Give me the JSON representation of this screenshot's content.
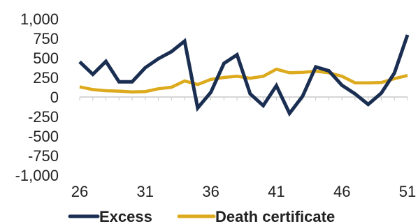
{
  "chart_data": {
    "type": "line",
    "title": "",
    "xlabel": "",
    "ylabel": "",
    "x": [
      26,
      27,
      28,
      29,
      30,
      31,
      32,
      33,
      34,
      35,
      36,
      37,
      38,
      39,
      40,
      41,
      42,
      43,
      44,
      45,
      46,
      47,
      48,
      49,
      50,
      51
    ],
    "x_ticks": [
      26,
      31,
      36,
      41,
      46,
      51
    ],
    "x_tick_labels": [
      "26",
      "31",
      "36",
      "41",
      "46",
      "51"
    ],
    "ylim": [
      -1000,
      1000
    ],
    "y_ticks": [
      1000,
      750,
      500,
      250,
      0,
      -250,
      -500,
      -750,
      -1000
    ],
    "y_tick_labels": [
      "1,000",
      "750",
      "500",
      "250",
      "0",
      "-250",
      "-500",
      "-750",
      "-1,000"
    ],
    "grid": false,
    "legend": "bottom",
    "series": [
      {
        "name": "Excess",
        "color": "#1a2e52",
        "values": [
          450,
          290,
          455,
          195,
          195,
          375,
          490,
          580,
          715,
          -140,
          60,
          430,
          540,
          40,
          -110,
          145,
          -210,
          10,
          385,
          335,
          150,
          40,
          -95,
          50,
          305,
          795
        ]
      },
      {
        "name": "Death certificate",
        "color": "#dcaa1c",
        "values": [
          130,
          95,
          80,
          75,
          65,
          70,
          105,
          125,
          205,
          160,
          225,
          250,
          265,
          240,
          265,
          355,
          310,
          315,
          330,
          310,
          265,
          180,
          180,
          185,
          235,
          275
        ]
      }
    ]
  }
}
